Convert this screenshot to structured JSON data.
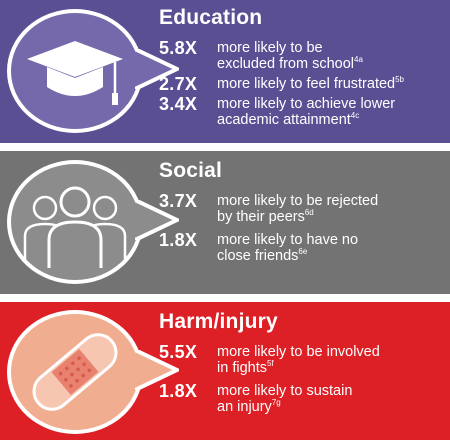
{
  "sections": [
    {
      "title": "Education",
      "icon": "graduation-cap-icon",
      "color": "#5b4f94",
      "stats": [
        {
          "multiplier": "5.8X",
          "line1": "more likely to be",
          "line2": "excluded from school",
          "ref": "4a"
        },
        {
          "multiplier": "2.7X",
          "line1": "more likely to feel frustrated",
          "line2": "",
          "ref": "5b"
        },
        {
          "multiplier": "3.4X",
          "line1": "more likely to achieve lower",
          "line2": "academic attainment",
          "ref": "4c"
        }
      ]
    },
    {
      "title": "Social",
      "icon": "people-group-icon",
      "color": "#737373",
      "stats": [
        {
          "multiplier": "3.7X",
          "line1": "more likely to be rejected",
          "line2": "by their peers",
          "ref": "6d"
        },
        {
          "multiplier": "1.8X",
          "line1": "more likely to have no",
          "line2": "close friends",
          "ref": "6e"
        }
      ]
    },
    {
      "title": "Harm/injury",
      "icon": "bandage-icon",
      "color": "#dd1f26",
      "stats": [
        {
          "multiplier": "5.5X",
          "line1": "more likely to be involved",
          "line2": "in fights",
          "ref": "5f"
        },
        {
          "multiplier": "1.8X",
          "line1": "more likely to sustain",
          "line2": "an injury",
          "ref": "7g"
        }
      ]
    }
  ]
}
